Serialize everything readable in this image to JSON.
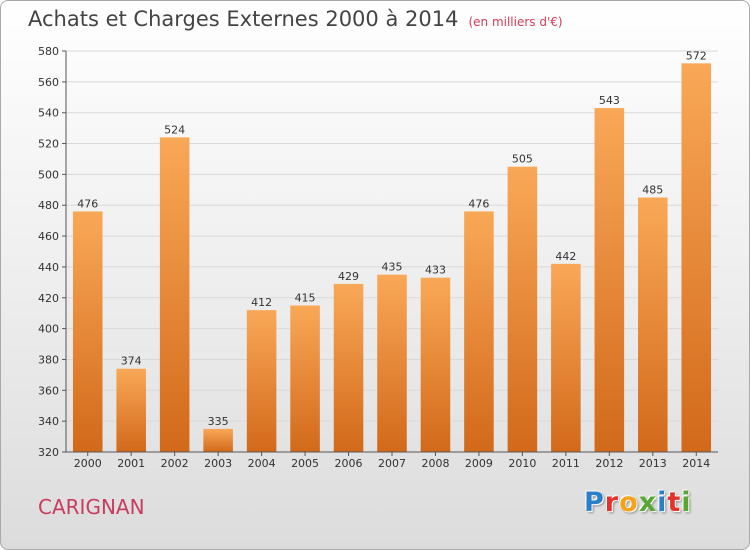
{
  "title": "Achats et Charges Externes 2000 à 2014",
  "subtitle": "(en milliers d'€)",
  "city": "CARIGNAN",
  "logo": {
    "letters": [
      "P",
      "r",
      "o",
      "x",
      "i",
      "t",
      "i"
    ],
    "colors": [
      "#2b7fc8",
      "#e4312b",
      "#f7a21b",
      "#5aa634",
      "#2b7fc8",
      "#e4312b",
      "#5aa634"
    ]
  },
  "colors": {
    "bar_top": "#f9a857",
    "bar_bottom": "#d2691a",
    "grid": "#d9d9d9",
    "axis": "#555555"
  },
  "chart_data": {
    "type": "bar",
    "title": "Achats et Charges Externes 2000 à 2014",
    "subtitle": "(en milliers d'€)",
    "categories": [
      "2000",
      "2001",
      "2002",
      "2003",
      "2004",
      "2005",
      "2006",
      "2007",
      "2008",
      "2009",
      "2010",
      "2011",
      "2012",
      "2013",
      "2014"
    ],
    "values": [
      476,
      374,
      524,
      335,
      412,
      415,
      429,
      435,
      433,
      476,
      505,
      442,
      543,
      485,
      572
    ],
    "ylim": [
      320,
      580
    ],
    "yticks": [
      320,
      340,
      360,
      380,
      400,
      420,
      440,
      460,
      480,
      500,
      520,
      540,
      560,
      580
    ],
    "grid": true,
    "legend": "none"
  }
}
